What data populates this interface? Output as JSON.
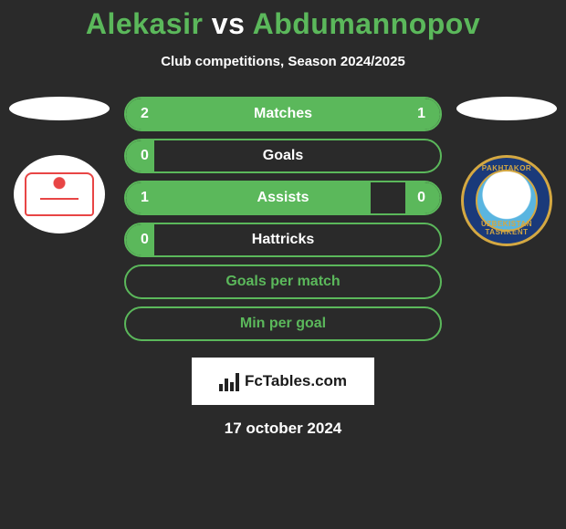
{
  "title": {
    "player1": "Alekasir",
    "vs": "vs",
    "player2": "Abdumannopov"
  },
  "subtitle": "Club competitions, Season 2024/2025",
  "logos": {
    "left_accent": "#e84545",
    "right_outer": "#1a3a7a",
    "right_ring": "#d4a842",
    "right_text_top": "PAKHTAKOR",
    "right_text_bottom": "UZBEKISTAN TASHKENT"
  },
  "stats": [
    {
      "label": "Matches",
      "left_val": "2",
      "right_val": "1",
      "left_pct": 67,
      "right_pct": 33,
      "has_bar": true
    },
    {
      "label": "Goals",
      "left_val": "0",
      "right_val": "",
      "left_pct": 9,
      "right_pct": 0,
      "has_bar": true
    },
    {
      "label": "Assists",
      "left_val": "1",
      "right_val": "0",
      "left_pct": 78,
      "right_pct": 11,
      "has_bar": true
    },
    {
      "label": "Hattricks",
      "left_val": "0",
      "right_val": "",
      "left_pct": 9,
      "right_pct": 0,
      "has_bar": true
    },
    {
      "label": "Goals per match",
      "has_bar": false
    },
    {
      "label": "Min per goal",
      "has_bar": false
    }
  ],
  "brand": {
    "label": "FcTables.com"
  },
  "date": "17 october 2024",
  "colors": {
    "accent": "#5bb85b",
    "bg": "#2a2a2a",
    "text": "#ffffff"
  }
}
